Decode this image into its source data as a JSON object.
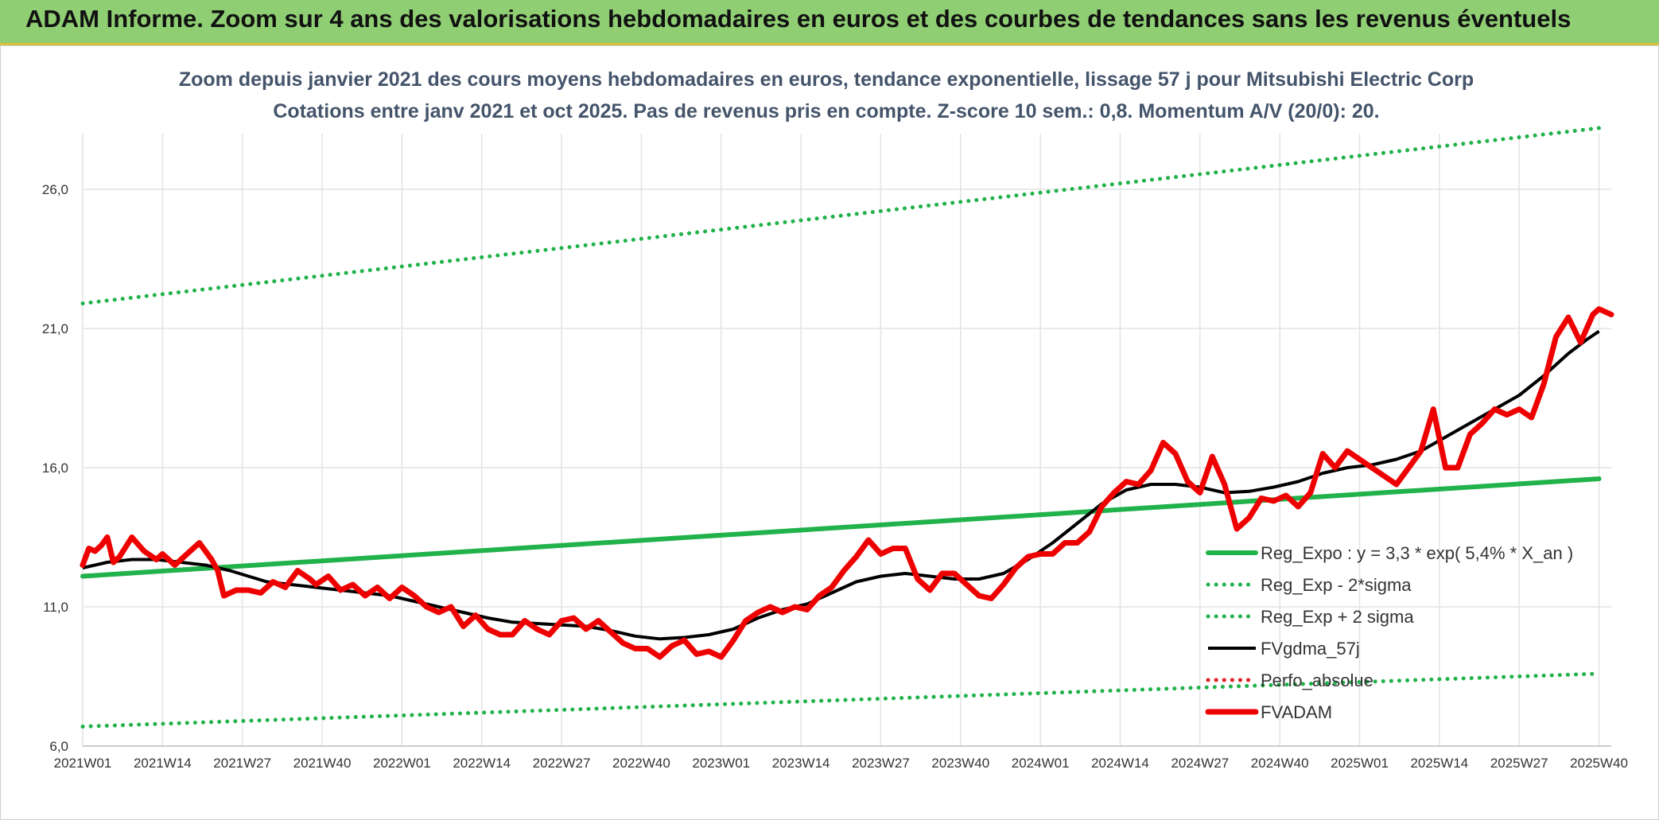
{
  "banner": {
    "title": "ADAM Informe. Zoom sur 4 ans des valorisations hebdomadaires en euros et des courbes de tendances sans les revenus éventuels"
  },
  "colors": {
    "banner_bg": "#8fce73",
    "regression": "#21b24b",
    "sigma": "#21b24b",
    "gdma": "#000000",
    "perfo": "#e02020",
    "fvadam": "#ee0000",
    "title_text": "#44546a"
  },
  "chart_data": {
    "type": "line",
    "title": "Zoom depuis janvier 2021 des cours moyens hebdomadaires en euros, tendance exponentielle, lissage 57 j pour Mitsubishi Electric Corp",
    "subtitle": "Cotations entre janv 2021 et oct 2025. Pas de revenus pris en compte. Z-score 10 sem.: 0,8. Momentum A/V (20/0): 20.",
    "xlabel": "",
    "ylabel": "",
    "ylim": [
      6,
      28
    ],
    "yticks": [
      6.0,
      11.0,
      16.0,
      21.0,
      26.0
    ],
    "ytick_labels": [
      "6,0",
      "11,0",
      "16,0",
      "21,0",
      "26,0"
    ],
    "x_count": 250,
    "xticks": [
      {
        "i": 0,
        "label": "2021W01"
      },
      {
        "i": 13,
        "label": "2021W14"
      },
      {
        "i": 26,
        "label": "2021W27"
      },
      {
        "i": 39,
        "label": "2021W40"
      },
      {
        "i": 52,
        "label": "2022W01"
      },
      {
        "i": 65,
        "label": "2022W14"
      },
      {
        "i": 78,
        "label": "2022W27"
      },
      {
        "i": 91,
        "label": "2022W40"
      },
      {
        "i": 104,
        "label": "2023W01"
      },
      {
        "i": 117,
        "label": "2023W14"
      },
      {
        "i": 130,
        "label": "2023W27"
      },
      {
        "i": 143,
        "label": "2023W40"
      },
      {
        "i": 156,
        "label": "2024W01"
      },
      {
        "i": 169,
        "label": "2024W14"
      },
      {
        "i": 182,
        "label": "2024W27"
      },
      {
        "i": 195,
        "label": "2024W40"
      },
      {
        "i": 208,
        "label": "2025W01"
      },
      {
        "i": 221,
        "label": "2025W14"
      },
      {
        "i": 234,
        "label": "2025W27"
      },
      {
        "i": 247,
        "label": "2025W40"
      }
    ],
    "legend_position": "right",
    "series": [
      {
        "name": "Reg_Expo : y = 3,3 * exp( 5,4% *  X_an )",
        "style": "solid-thick",
        "color": "#21b24b",
        "points": [
          [
            0,
            12.1
          ],
          [
            247,
            15.6
          ]
        ]
      },
      {
        "name": "Reg_Exp - 2*sigma",
        "style": "dotted",
        "color": "#21b24b",
        "points": [
          [
            0,
            6.7
          ],
          [
            247,
            8.6
          ]
        ]
      },
      {
        "name": "Reg_Exp + 2 sigma",
        "style": "dotted",
        "color": "#21b24b",
        "points": [
          [
            0,
            21.9
          ],
          [
            247,
            28.2
          ]
        ]
      },
      {
        "name": "FVgdma_57j",
        "style": "solid",
        "color": "#000000",
        "points": [
          [
            0,
            12.4
          ],
          [
            4,
            12.6
          ],
          [
            8,
            12.7
          ],
          [
            12,
            12.7
          ],
          [
            16,
            12.6
          ],
          [
            20,
            12.5
          ],
          [
            24,
            12.3
          ],
          [
            27,
            12.1
          ],
          [
            30,
            11.9
          ],
          [
            34,
            11.8
          ],
          [
            38,
            11.7
          ],
          [
            42,
            11.6
          ],
          [
            46,
            11.5
          ],
          [
            50,
            11.4
          ],
          [
            54,
            11.2
          ],
          [
            58,
            11.0
          ],
          [
            62,
            10.8
          ],
          [
            66,
            10.6
          ],
          [
            70,
            10.45
          ],
          [
            74,
            10.4
          ],
          [
            78,
            10.35
          ],
          [
            82,
            10.3
          ],
          [
            86,
            10.15
          ],
          [
            90,
            9.95
          ],
          [
            94,
            9.85
          ],
          [
            98,
            9.9
          ],
          [
            102,
            10.0
          ],
          [
            106,
            10.2
          ],
          [
            110,
            10.6
          ],
          [
            114,
            10.9
          ],
          [
            118,
            11.1
          ],
          [
            122,
            11.5
          ],
          [
            126,
            11.9
          ],
          [
            130,
            12.1
          ],
          [
            134,
            12.2
          ],
          [
            138,
            12.1
          ],
          [
            142,
            12.0
          ],
          [
            146,
            12.0
          ],
          [
            150,
            12.2
          ],
          [
            154,
            12.7
          ],
          [
            158,
            13.3
          ],
          [
            162,
            14.0
          ],
          [
            166,
            14.7
          ],
          [
            170,
            15.2
          ],
          [
            174,
            15.4
          ],
          [
            178,
            15.4
          ],
          [
            182,
            15.3
          ],
          [
            186,
            15.1
          ],
          [
            190,
            15.15
          ],
          [
            194,
            15.3
          ],
          [
            198,
            15.5
          ],
          [
            202,
            15.8
          ],
          [
            206,
            16.0
          ],
          [
            210,
            16.1
          ],
          [
            214,
            16.3
          ],
          [
            218,
            16.6
          ],
          [
            222,
            17.1
          ],
          [
            226,
            17.6
          ],
          [
            230,
            18.1
          ],
          [
            234,
            18.6
          ],
          [
            238,
            19.3
          ],
          [
            242,
            20.1
          ],
          [
            245,
            20.6
          ],
          [
            247,
            20.9
          ]
        ]
      },
      {
        "name": "Perfo_absolue",
        "style": "dotted",
        "color": "#e02020",
        "points": []
      },
      {
        "name": "FVADAM",
        "style": "solid-thick",
        "color": "#ee0000",
        "points": [
          [
            0,
            12.5
          ],
          [
            1,
            13.1
          ],
          [
            2,
            13.0
          ],
          [
            3,
            13.2
          ],
          [
            4,
            13.5
          ],
          [
            5,
            12.6
          ],
          [
            6,
            12.8
          ],
          [
            8,
            13.5
          ],
          [
            10,
            13.0
          ],
          [
            12,
            12.7
          ],
          [
            13,
            12.9
          ],
          [
            15,
            12.5
          ],
          [
            17,
            12.9
          ],
          [
            19,
            13.3
          ],
          [
            21,
            12.7
          ],
          [
            22,
            12.3
          ],
          [
            23,
            11.4
          ],
          [
            25,
            11.6
          ],
          [
            27,
            11.6
          ],
          [
            29,
            11.5
          ],
          [
            31,
            11.9
          ],
          [
            33,
            11.7
          ],
          [
            35,
            12.3
          ],
          [
            37,
            12.0
          ],
          [
            38,
            11.8
          ],
          [
            40,
            12.1
          ],
          [
            42,
            11.6
          ],
          [
            44,
            11.8
          ],
          [
            46,
            11.4
          ],
          [
            48,
            11.7
          ],
          [
            50,
            11.3
          ],
          [
            52,
            11.7
          ],
          [
            54,
            11.4
          ],
          [
            56,
            11.0
          ],
          [
            58,
            10.8
          ],
          [
            60,
            11.0
          ],
          [
            62,
            10.3
          ],
          [
            64,
            10.7
          ],
          [
            66,
            10.2
          ],
          [
            68,
            10.0
          ],
          [
            70,
            10.0
          ],
          [
            72,
            10.5
          ],
          [
            74,
            10.2
          ],
          [
            76,
            10.0
          ],
          [
            78,
            10.5
          ],
          [
            80,
            10.6
          ],
          [
            82,
            10.2
          ],
          [
            84,
            10.5
          ],
          [
            86,
            10.1
          ],
          [
            88,
            9.7
          ],
          [
            90,
            9.5
          ],
          [
            92,
            9.5
          ],
          [
            94,
            9.2
          ],
          [
            96,
            9.6
          ],
          [
            98,
            9.8
          ],
          [
            100,
            9.3
          ],
          [
            102,
            9.4
          ],
          [
            104,
            9.2
          ],
          [
            106,
            9.8
          ],
          [
            108,
            10.5
          ],
          [
            110,
            10.8
          ],
          [
            112,
            11.0
          ],
          [
            114,
            10.8
          ],
          [
            116,
            11.0
          ],
          [
            118,
            10.9
          ],
          [
            120,
            11.4
          ],
          [
            122,
            11.7
          ],
          [
            124,
            12.3
          ],
          [
            126,
            12.8
          ],
          [
            128,
            13.4
          ],
          [
            130,
            12.9
          ],
          [
            132,
            13.1
          ],
          [
            134,
            13.1
          ],
          [
            136,
            12.0
          ],
          [
            138,
            11.6
          ],
          [
            140,
            12.2
          ],
          [
            142,
            12.2
          ],
          [
            144,
            11.8
          ],
          [
            146,
            11.4
          ],
          [
            148,
            11.3
          ],
          [
            150,
            11.8
          ],
          [
            152,
            12.4
          ],
          [
            154,
            12.8
          ],
          [
            156,
            12.9
          ],
          [
            158,
            12.9
          ],
          [
            160,
            13.3
          ],
          [
            162,
            13.3
          ],
          [
            164,
            13.7
          ],
          [
            166,
            14.6
          ],
          [
            168,
            15.1
          ],
          [
            170,
            15.5
          ],
          [
            172,
            15.4
          ],
          [
            174,
            15.9
          ],
          [
            176,
            16.9
          ],
          [
            178,
            16.5
          ],
          [
            180,
            15.5
          ],
          [
            182,
            15.1
          ],
          [
            184,
            16.4
          ],
          [
            186,
            15.4
          ],
          [
            188,
            13.8
          ],
          [
            190,
            14.2
          ],
          [
            192,
            14.9
          ],
          [
            194,
            14.8
          ],
          [
            196,
            15.0
          ],
          [
            198,
            14.6
          ],
          [
            200,
            15.1
          ],
          [
            202,
            16.5
          ],
          [
            204,
            16.0
          ],
          [
            206,
            16.6
          ],
          [
            208,
            16.3
          ],
          [
            210,
            16.0
          ],
          [
            212,
            15.7
          ],
          [
            214,
            15.4
          ],
          [
            216,
            16.0
          ],
          [
            218,
            16.6
          ],
          [
            220,
            18.1
          ],
          [
            222,
            16.0
          ],
          [
            224,
            16.0
          ],
          [
            226,
            17.2
          ],
          [
            228,
            17.6
          ],
          [
            230,
            18.1
          ],
          [
            232,
            17.9
          ],
          [
            234,
            18.1
          ],
          [
            236,
            17.8
          ],
          [
            238,
            19.0
          ],
          [
            240,
            20.7
          ],
          [
            242,
            21.4
          ],
          [
            244,
            20.5
          ],
          [
            246,
            21.5
          ],
          [
            247,
            21.7
          ],
          [
            249,
            21.5
          ]
        ]
      }
    ]
  }
}
